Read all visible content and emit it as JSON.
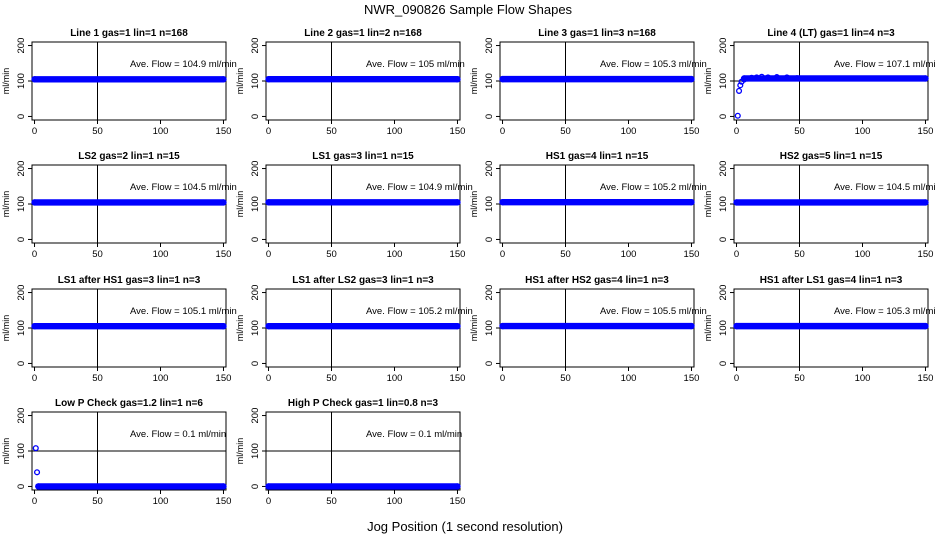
{
  "page_title": "NWR_090826  Sample Flow Shapes",
  "x_axis_label": "Jog Position (1 second resolution)",
  "ylabel": "ml/min",
  "x_ticks": [
    0,
    50,
    100,
    150
  ],
  "y_ticks": [
    0,
    100,
    200
  ],
  "xlim": [
    -2,
    152
  ],
  "ylim": [
    -10,
    210
  ],
  "vline_x": 50,
  "hline_y": 100,
  "marker_color": "#0000ff",
  "chart_data": [
    {
      "type": "scatter",
      "title": "Line 1 gas=1 lin=1 n=168",
      "annotation": "Ave. Flow =  104.9  ml/min",
      "level": 104.9,
      "x_range": [
        0,
        150
      ],
      "start_points": []
    },
    {
      "type": "scatter",
      "title": "Line 2 gas=1 lin=2 n=168",
      "annotation": "Ave. Flow =  105  ml/min",
      "level": 105,
      "x_range": [
        0,
        150
      ],
      "start_points": []
    },
    {
      "type": "scatter",
      "title": "Line 3 gas=1 lin=3 n=168",
      "annotation": "Ave. Flow =  105.3  ml/min",
      "level": 105.3,
      "x_range": [
        0,
        150
      ],
      "start_points": []
    },
    {
      "type": "scatter",
      "title": "Line 4 (LT) gas=1 lin=4 n=3",
      "annotation": "Ave. Flow =  107.1  ml/min",
      "level": 107.1,
      "x_range": [
        6,
        150
      ],
      "start_points": [
        [
          1,
          2
        ],
        [
          2,
          72
        ],
        [
          3,
          88
        ],
        [
          4,
          98
        ],
        [
          6,
          104
        ],
        [
          9,
          107
        ],
        [
          12,
          109
        ],
        [
          16,
          110
        ],
        [
          20,
          112
        ],
        [
          25,
          110
        ],
        [
          32,
          111
        ],
        [
          40,
          110
        ],
        [
          48,
          108
        ]
      ]
    },
    {
      "type": "scatter",
      "title": "LS2 gas=2 lin=1 n=15",
      "annotation": "Ave. Flow =  104.5  ml/min",
      "level": 104.5,
      "x_range": [
        0,
        150
      ],
      "start_points": []
    },
    {
      "type": "scatter",
      "title": "LS1 gas=3 lin=1 n=15",
      "annotation": "Ave. Flow =  104.9  ml/min",
      "level": 104.9,
      "x_range": [
        0,
        150
      ],
      "start_points": []
    },
    {
      "type": "scatter",
      "title": "HS1 gas=4 lin=1 n=15",
      "annotation": "Ave. Flow =  105.2  ml/min",
      "level": 105.2,
      "x_range": [
        0,
        150
      ],
      "start_points": []
    },
    {
      "type": "scatter",
      "title": "HS2 gas=5 lin=1 n=15",
      "annotation": "Ave. Flow =  104.5  ml/min",
      "level": 104.5,
      "x_range": [
        0,
        150
      ],
      "start_points": []
    },
    {
      "type": "scatter",
      "title": "LS1 after HS1 gas=3 lin=1 n=3",
      "annotation": "Ave. Flow =  105.1  ml/min",
      "level": 105.1,
      "x_range": [
        0,
        150
      ],
      "start_points": []
    },
    {
      "type": "scatter",
      "title": "LS1 after LS2 gas=3 lin=1 n=3",
      "annotation": "Ave. Flow =  105.2  ml/min",
      "level": 105.2,
      "x_range": [
        0,
        150
      ],
      "start_points": []
    },
    {
      "type": "scatter",
      "title": "HS1 after HS2 gas=4 lin=1 n=3",
      "annotation": "Ave. Flow =  105.5  ml/min",
      "level": 105.5,
      "x_range": [
        0,
        150
      ],
      "start_points": []
    },
    {
      "type": "scatter",
      "title": "HS1 after LS1 gas=4 lin=1 n=3",
      "annotation": "Ave. Flow =  105.3  ml/min",
      "level": 105.3,
      "x_range": [
        0,
        150
      ],
      "start_points": []
    },
    {
      "type": "scatter",
      "title": "Low P Check gas=1.2 lin=1 n=6",
      "annotation": "Ave. Flow =  0.1  ml/min",
      "level": 0.1,
      "x_range": [
        3,
        150
      ],
      "start_points": [
        [
          1,
          108
        ],
        [
          2,
          40
        ]
      ]
    },
    {
      "type": "scatter",
      "title": "High P Check gas=1 lin=0.8 n=3",
      "annotation": "Ave. Flow =  0.1  ml/min",
      "level": 0.1,
      "x_range": [
        0,
        150
      ],
      "start_points": []
    }
  ]
}
